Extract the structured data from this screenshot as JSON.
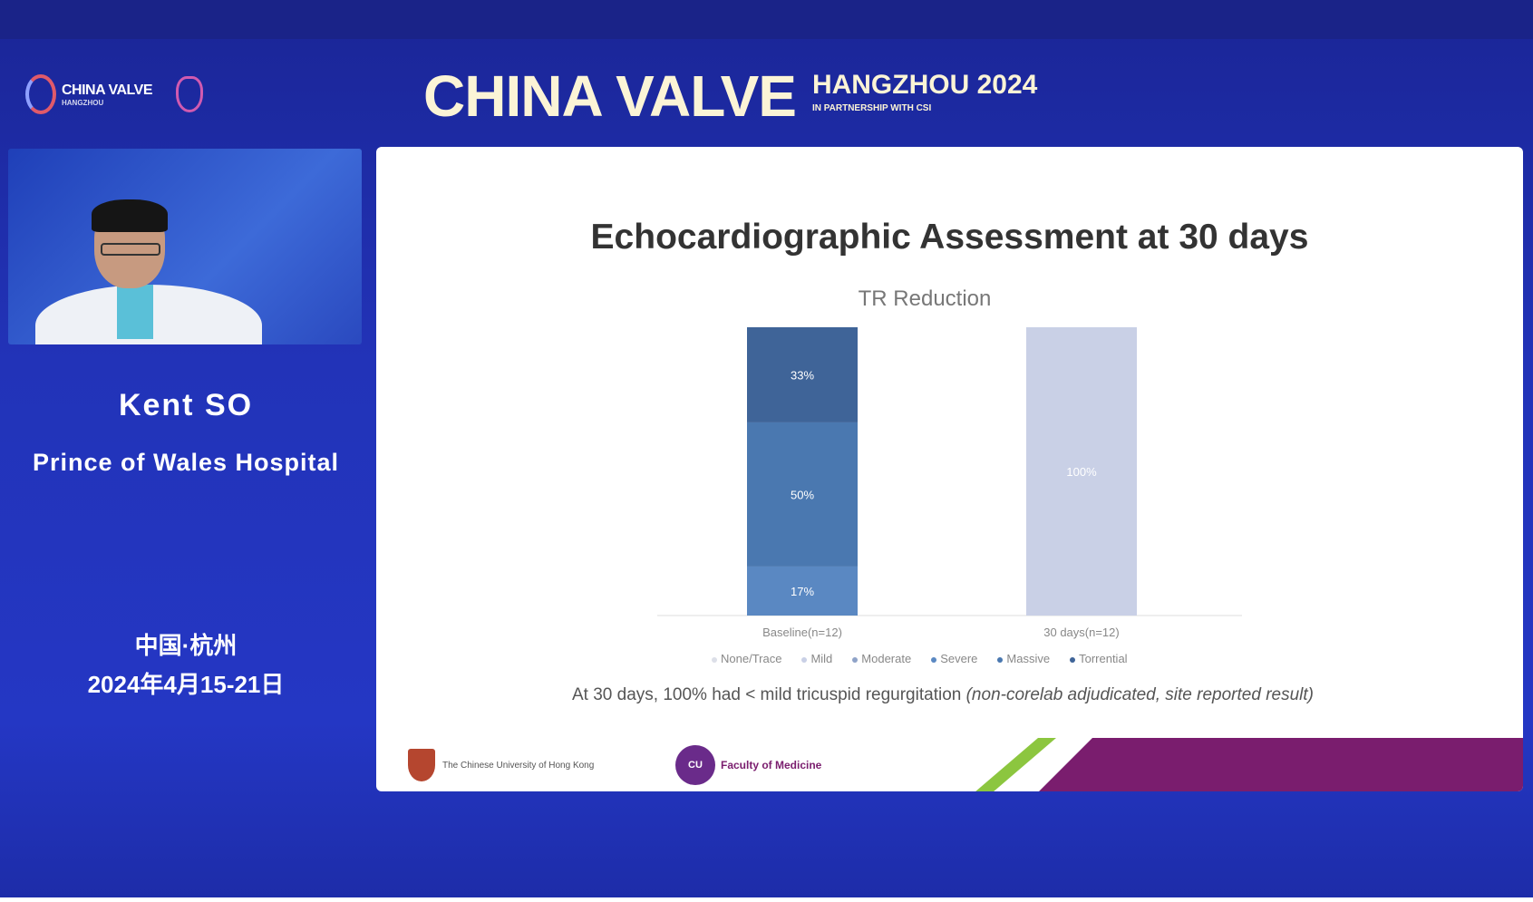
{
  "header": {
    "logo_text": "CHINA VALVE",
    "logo_sub": "HANGZHOU",
    "event_title": "CHINA VALVE",
    "event_city_year": "HANGZHOU 2024",
    "event_partnership": "IN PARTNERSHIP WITH CSI"
  },
  "speaker": {
    "name": "Kent SO",
    "affiliation": "Prince of Wales Hospital",
    "location": "中国·杭州",
    "dates": "2024年4月15-21日"
  },
  "slide": {
    "title": "Echocardiographic Assessment at 30 days",
    "note_main": "At 30 days, 100% had  < mild tricuspid regurgitation",
    "note_italic": "(non-corelab adjudicated, site reported result)",
    "footer_left": "The Chinese University of Hong Kong",
    "footer_right": "Faculty of Medicine",
    "footer_badge": "CU"
  },
  "chart_data": {
    "type": "bar",
    "stacked": true,
    "title": "TR Reduction",
    "categories": [
      "Baseline(n=12)",
      "30 days(n=12)"
    ],
    "ylim": [
      0,
      100
    ],
    "legend_position": "bottom",
    "series": [
      {
        "name": "None/Trace",
        "values": [
          0,
          0
        ],
        "color": "#dcdfe8"
      },
      {
        "name": "Mild",
        "values": [
          0,
          100
        ],
        "color": "#c9d0e6"
      },
      {
        "name": "Moderate",
        "values": [
          0,
          0
        ],
        "color": "#8fa3c8"
      },
      {
        "name": "Severe",
        "values": [
          17,
          0
        ],
        "color": "#5a88c2"
      },
      {
        "name": "Massive",
        "values": [
          50,
          0
        ],
        "color": "#4a78b0"
      },
      {
        "name": "Torrential",
        "values": [
          33,
          0
        ],
        "color": "#3f6498"
      }
    ],
    "data_labels": [
      [
        "",
        "",
        "",
        "17%",
        "50%",
        "33%"
      ],
      [
        "",
        "100%",
        "",
        "",
        "",
        ""
      ]
    ]
  }
}
